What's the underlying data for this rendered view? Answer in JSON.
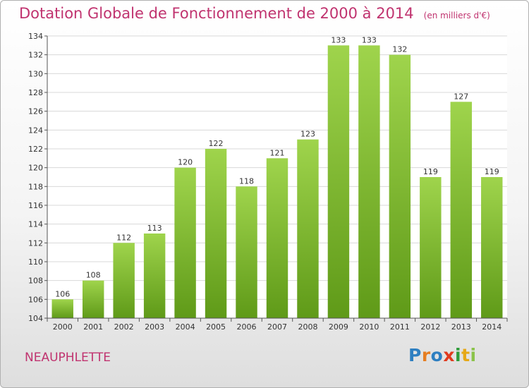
{
  "header": {
    "title": "Dotation Globale de Fonctionnement de 2000 à 2014",
    "unit": "(en milliers d'€)"
  },
  "footer": {
    "commune": "NEAUPHLETTE",
    "logo_letters": [
      {
        "char": "P",
        "color": "#2e7fc1"
      },
      {
        "char": "r",
        "color": "#e67e22"
      },
      {
        "char": "o",
        "color": "#2e7fc1"
      },
      {
        "char": "x",
        "color": "#e03a1e"
      },
      {
        "char": "i",
        "color": "#2e9c3a"
      },
      {
        "char": "t",
        "color": "#e6a817"
      },
      {
        "char": "i",
        "color": "#8bc34a"
      }
    ]
  },
  "chart_data": {
    "type": "bar",
    "title": "Dotation Globale de Fonctionnement de 2000 à 2014",
    "subtitle": "(en milliers d'€)",
    "categories": [
      "2000",
      "2001",
      "2002",
      "2003",
      "2004",
      "2005",
      "2006",
      "2007",
      "2008",
      "2009",
      "2010",
      "2011",
      "2012",
      "2013",
      "2014"
    ],
    "values": [
      106,
      108,
      112,
      113,
      120,
      122,
      118,
      121,
      123,
      133,
      133,
      132,
      119,
      127,
      119
    ],
    "ylim": [
      104,
      134
    ],
    "yticks": [
      104,
      106,
      108,
      110,
      112,
      114,
      116,
      118,
      120,
      122,
      124,
      126,
      128,
      130,
      132,
      134
    ],
    "grid": true,
    "bar_color": "#7fbe2e",
    "bar_color_light": "#9fd44c",
    "bar_color_dark": "#5f9a18"
  }
}
